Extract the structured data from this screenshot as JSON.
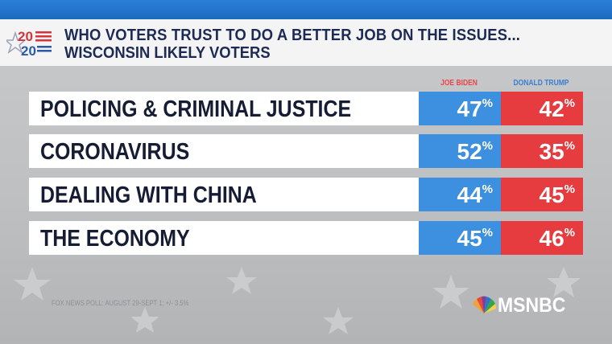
{
  "header": {
    "title": "WHO VOTERS TRUST TO DO A BETTER JOB ON THE ISSUES...",
    "subtitle": "WISCONSIN LIKELY VOTERS",
    "logo_text_top": "20",
    "logo_text_bottom": "20"
  },
  "colors": {
    "biden": "#3d8fe0",
    "trump": "#e63c3f",
    "biden_header": "#e8474a",
    "trump_header": "#3a7fd0",
    "topbar": "#1d6bc0"
  },
  "chart_data": {
    "type": "table",
    "columns": [
      "JOE BIDEN",
      "DONALD TRUMP"
    ],
    "rows": [
      {
        "label": "POLICING & CRIMINAL JUSTICE",
        "biden": 47,
        "trump": 42
      },
      {
        "label": "CORONAVIRUS",
        "biden": 52,
        "trump": 35
      },
      {
        "label": "DEALING WITH CHINA",
        "biden": 44,
        "trump": 45
      },
      {
        "label": "THE ECONOMY",
        "biden": 45,
        "trump": 46
      }
    ],
    "unit": "%"
  },
  "source": "FOX NEWS POLL: AUGUST 29-SEPT 1; +/- 3.5%",
  "network": "MSNBC"
}
